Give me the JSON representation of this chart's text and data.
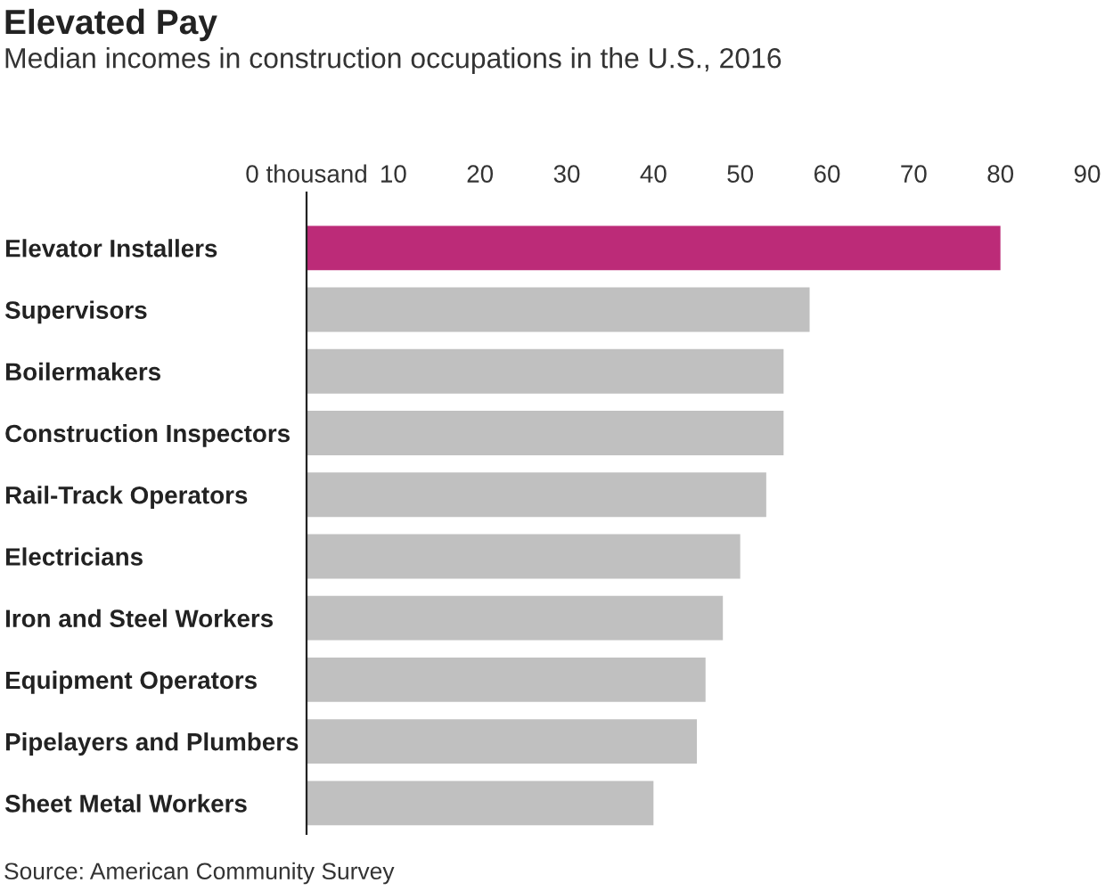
{
  "chart_data": {
    "type": "bar",
    "orientation": "horizontal",
    "title": "Elevated Pay",
    "subtitle": "Median incomes in construction occupations in the U.S., 2016",
    "categories": [
      "Elevator Installers",
      "Supervisors",
      "Boilermakers",
      "Construction Inspectors",
      "Rail-Track Operators",
      "Electricians",
      "Iron and Steel Workers",
      "Equipment Operators",
      "Pipelayers and Plumbers",
      "Sheet Metal Workers"
    ],
    "values": [
      80,
      58,
      55,
      55,
      53,
      50,
      48,
      46,
      45,
      40
    ],
    "colors": [
      "#bc2b78",
      "#c0c0c0",
      "#c0c0c0",
      "#c0c0c0",
      "#c0c0c0",
      "#c0c0c0",
      "#c0c0c0",
      "#c0c0c0",
      "#c0c0c0",
      "#c0c0c0"
    ],
    "xlim": [
      0,
      90
    ],
    "xticks": [
      {
        "value": 0,
        "label": "0 thousand"
      },
      10,
      20,
      30,
      40,
      50,
      60,
      70,
      80,
      90
    ],
    "grid": false,
    "legend": false,
    "annotations": [
      "Source: American Community Survey"
    ]
  }
}
